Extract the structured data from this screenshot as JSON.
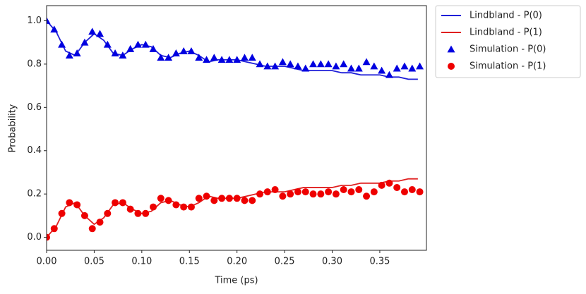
{
  "chart_data": {
    "type": "line",
    "xlabel": "Time (ps)",
    "ylabel": "Probability",
    "xlim": [
      0,
      0.399
    ],
    "ylim": [
      -0.06,
      1.07
    ],
    "xticks": [
      {
        "value": 0,
        "label": "0.00"
      },
      0.05,
      {
        "value": 0.1,
        "label": "0.10"
      },
      0.15,
      {
        "value": 0.2,
        "label": "0.20"
      },
      0.25,
      {
        "value": 0.3,
        "label": "0.30"
      },
      0.35
    ],
    "yticks": [
      {
        "value": 0,
        "label": "0.0"
      },
      0.2,
      0.4,
      0.6,
      0.8,
      {
        "value": 1,
        "label": "1.0"
      }
    ],
    "legend": "outside upper right",
    "series": [
      {
        "name": "Lindbland - P(0)",
        "color": "#1f1fd8",
        "marker": "line",
        "x": [
          0,
          0.01,
          0.02,
          0.03,
          0.04,
          0.05,
          0.06,
          0.07,
          0.08,
          0.09,
          0.1,
          0.11,
          0.12,
          0.13,
          0.14,
          0.15,
          0.16,
          0.17,
          0.18,
          0.19,
          0.2,
          0.21,
          0.22,
          0.23,
          0.24,
          0.25,
          0.26,
          0.27,
          0.28,
          0.29,
          0.3,
          0.31,
          0.32,
          0.33,
          0.34,
          0.35,
          0.36,
          0.37,
          0.38,
          0.39
        ],
        "values": [
          1.0,
          0.95,
          0.86,
          0.84,
          0.9,
          0.94,
          0.91,
          0.85,
          0.84,
          0.87,
          0.89,
          0.88,
          0.84,
          0.83,
          0.85,
          0.86,
          0.84,
          0.81,
          0.82,
          0.82,
          0.82,
          0.81,
          0.8,
          0.79,
          0.79,
          0.79,
          0.78,
          0.77,
          0.77,
          0.77,
          0.77,
          0.76,
          0.76,
          0.75,
          0.75,
          0.75,
          0.74,
          0.74,
          0.73,
          0.73
        ]
      },
      {
        "name": "Lindbland - P(1)",
        "color": "#e02020",
        "marker": "line",
        "x": [
          0,
          0.01,
          0.02,
          0.03,
          0.04,
          0.05,
          0.06,
          0.07,
          0.08,
          0.09,
          0.1,
          0.11,
          0.12,
          0.13,
          0.14,
          0.15,
          0.16,
          0.17,
          0.18,
          0.19,
          0.2,
          0.21,
          0.22,
          0.23,
          0.24,
          0.25,
          0.26,
          0.27,
          0.28,
          0.29,
          0.3,
          0.31,
          0.32,
          0.33,
          0.34,
          0.35,
          0.36,
          0.37,
          0.38,
          0.39
        ],
        "values": [
          0.0,
          0.05,
          0.14,
          0.16,
          0.1,
          0.06,
          0.09,
          0.15,
          0.16,
          0.13,
          0.11,
          0.12,
          0.16,
          0.17,
          0.15,
          0.14,
          0.16,
          0.19,
          0.18,
          0.18,
          0.18,
          0.19,
          0.2,
          0.21,
          0.21,
          0.21,
          0.22,
          0.23,
          0.23,
          0.23,
          0.23,
          0.24,
          0.24,
          0.25,
          0.25,
          0.25,
          0.26,
          0.26,
          0.27,
          0.27
        ]
      },
      {
        "name": "Simulation - P(0)",
        "color": "#0000e0",
        "marker": "triangle",
        "x": [
          0,
          0.008,
          0.016,
          0.024,
          0.032,
          0.04,
          0.048,
          0.056,
          0.064,
          0.072,
          0.08,
          0.088,
          0.096,
          0.104,
          0.112,
          0.12,
          0.128,
          0.136,
          0.144,
          0.152,
          0.16,
          0.168,
          0.176,
          0.184,
          0.192,
          0.2,
          0.208,
          0.216,
          0.224,
          0.232,
          0.24,
          0.248,
          0.256,
          0.264,
          0.272,
          0.28,
          0.288,
          0.296,
          0.304,
          0.312,
          0.32,
          0.328,
          0.336,
          0.344,
          0.352,
          0.36,
          0.368,
          0.376,
          0.384,
          0.392
        ],
        "values": [
          1.0,
          0.96,
          0.89,
          0.84,
          0.85,
          0.9,
          0.95,
          0.94,
          0.89,
          0.85,
          0.84,
          0.87,
          0.89,
          0.89,
          0.87,
          0.83,
          0.83,
          0.85,
          0.86,
          0.86,
          0.83,
          0.82,
          0.83,
          0.82,
          0.82,
          0.82,
          0.83,
          0.83,
          0.8,
          0.79,
          0.79,
          0.81,
          0.8,
          0.79,
          0.78,
          0.8,
          0.8,
          0.8,
          0.79,
          0.8,
          0.78,
          0.78,
          0.81,
          0.79,
          0.77,
          0.75,
          0.78,
          0.79,
          0.78,
          0.79
        ]
      },
      {
        "name": "Simulation - P(1)",
        "color": "#ee0000",
        "marker": "circle",
        "x": [
          0,
          0.008,
          0.016,
          0.024,
          0.032,
          0.04,
          0.048,
          0.056,
          0.064,
          0.072,
          0.08,
          0.088,
          0.096,
          0.104,
          0.112,
          0.12,
          0.128,
          0.136,
          0.144,
          0.152,
          0.16,
          0.168,
          0.176,
          0.184,
          0.192,
          0.2,
          0.208,
          0.216,
          0.224,
          0.232,
          0.24,
          0.248,
          0.256,
          0.264,
          0.272,
          0.28,
          0.288,
          0.296,
          0.304,
          0.312,
          0.32,
          0.328,
          0.336,
          0.344,
          0.352,
          0.36,
          0.368,
          0.376,
          0.384,
          0.392
        ],
        "values": [
          0.0,
          0.04,
          0.11,
          0.16,
          0.15,
          0.1,
          0.04,
          0.07,
          0.11,
          0.16,
          0.16,
          0.13,
          0.11,
          0.11,
          0.14,
          0.18,
          0.17,
          0.15,
          0.14,
          0.14,
          0.18,
          0.19,
          0.17,
          0.18,
          0.18,
          0.18,
          0.17,
          0.17,
          0.2,
          0.21,
          0.22,
          0.19,
          0.2,
          0.21,
          0.21,
          0.2,
          0.2,
          0.21,
          0.2,
          0.22,
          0.21,
          0.22,
          0.19,
          0.21,
          0.24,
          0.25,
          0.23,
          0.21,
          0.22,
          0.21
        ]
      }
    ]
  }
}
